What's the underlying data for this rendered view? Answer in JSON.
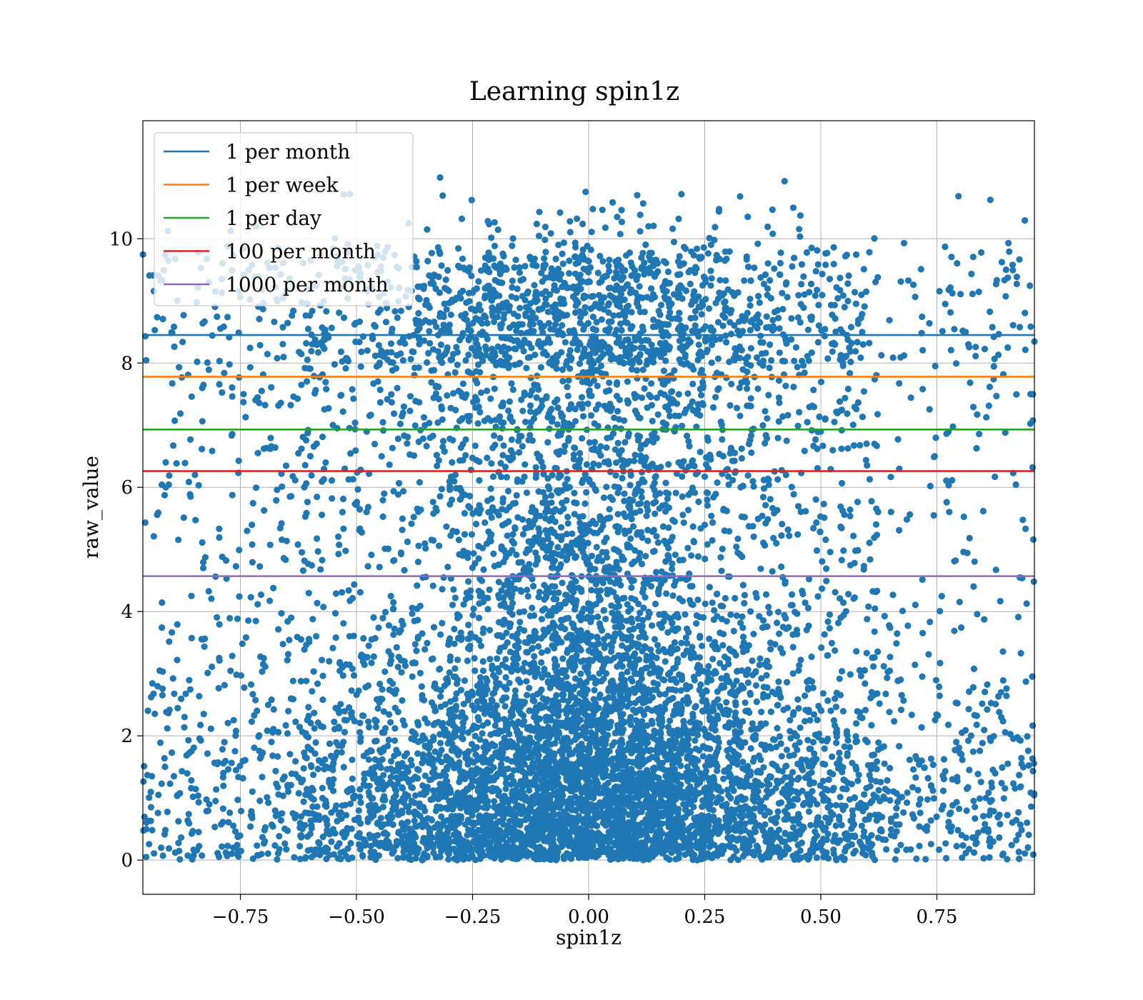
{
  "chart_data": {
    "type": "scatter",
    "title": "Learning spin1z",
    "xlabel": "spin1z",
    "ylabel": "raw_value",
    "xlim": [
      -0.96,
      0.96
    ],
    "ylim": [
      -0.55,
      11.9
    ],
    "xticks": [
      -0.75,
      -0.5,
      -0.25,
      0.0,
      0.25,
      0.5,
      0.75
    ],
    "xtick_labels": [
      "−0.75",
      "−0.50",
      "−0.25",
      "0.00",
      "0.25",
      "0.50",
      "0.75"
    ],
    "yticks": [
      0,
      2,
      4,
      6,
      8,
      10
    ],
    "ytick_labels": [
      "0",
      "2",
      "4",
      "6",
      "8",
      "10"
    ],
    "grid": true,
    "legend_position": "top-left",
    "scatter_color": "#1f77b4",
    "scatter_point_count": 9000,
    "thresholds": [
      {
        "name": "1 per month",
        "y": 8.45,
        "color": "#1f77b4"
      },
      {
        "name": "1 per week",
        "y": 7.78,
        "color": "#ff7f0e"
      },
      {
        "name": "1 per day",
        "y": 6.93,
        "color": "#2ca02c"
      },
      {
        "name": "100 per month",
        "y": 6.26,
        "color": "#d62728"
      },
      {
        "name": "1000 per month",
        "y": 4.57,
        "color": "#9467bd"
      }
    ]
  }
}
